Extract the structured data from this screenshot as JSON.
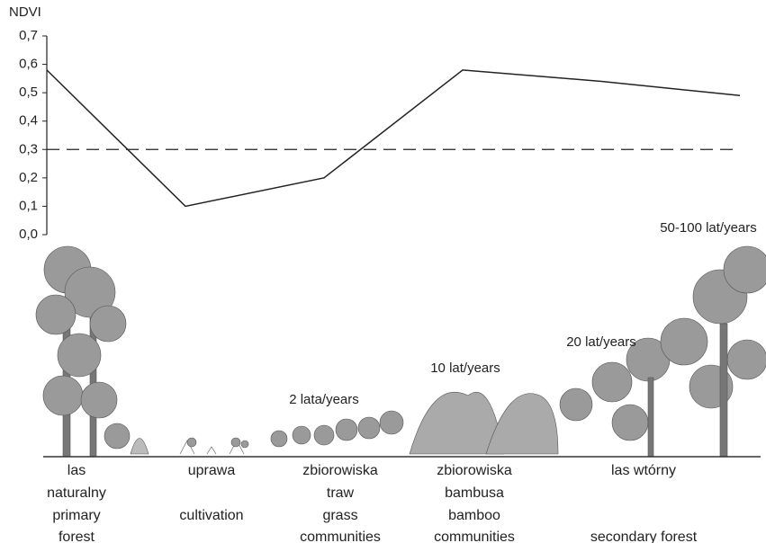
{
  "chart_data": {
    "type": "line",
    "y_label": "NDVI",
    "categories": [
      null,
      null,
      null,
      null,
      null,
      null
    ],
    "series": [
      {
        "color": "#222222",
        "values": [
          0.58,
          0.1,
          0.2,
          0.58,
          0.54,
          0.49
        ]
      }
    ],
    "threshold": 0.3,
    "ylim": [
      0,
      0.7
    ],
    "yticks": [
      {
        "value": 0,
        "label": "0,0"
      },
      {
        "value": 0.1,
        "label": "0,1"
      },
      {
        "value": 0.2,
        "label": "0,2"
      },
      {
        "value": 0.3,
        "label": "0,3"
      },
      {
        "value": 0.4,
        "label": "0,4"
      },
      {
        "value": 0.5,
        "label": "0,5"
      },
      {
        "value": 0.6,
        "label": "0,6"
      },
      {
        "value": 0.7,
        "label": "0,7"
      }
    ],
    "annotations": [
      "2 lata/years",
      "10 lat/years",
      "20 lat/years",
      "50-100 lat/years"
    ],
    "stages": [
      {
        "pl": [
          "las",
          "naturalny"
        ],
        "en": [
          "primary",
          "forest"
        ]
      },
      {
        "pl": [
          "uprawa"
        ],
        "en": [
          "cultivation"
        ]
      },
      {
        "pl": [
          "zbiorowiska",
          "traw"
        ],
        "en": [
          "grass",
          "communities"
        ]
      },
      {
        "pl": [
          "zbiorowiska",
          "bambusa"
        ],
        "en": [
          "bamboo",
          "communities"
        ]
      },
      {
        "pl": [
          "las wtórny"
        ],
        "en": [
          "secondary forest"
        ]
      }
    ]
  }
}
